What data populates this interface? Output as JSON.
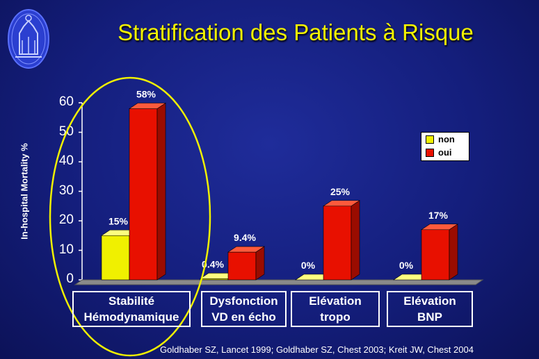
{
  "title": "Stratification des Patients à Risque",
  "citation": "Goldhaber SZ, Lancet 1999; Goldhaber SZ, Chest 2003;  Kreit JW, Chest 2004",
  "colors": {
    "non": "#f0f000",
    "oui": "#e81000",
    "highlight": "#f0f000",
    "title": "#f2f200"
  },
  "chart_data": {
    "type": "bar",
    "categories": [
      {
        "line1": "Stabilité",
        "line2": "Hémodynamique"
      },
      {
        "line1": "Dysfonction",
        "line2": "VD en écho"
      },
      {
        "line1": "Elévation",
        "line2": "tropo"
      },
      {
        "line1": "Elévation",
        "line2": "BNP"
      }
    ],
    "series": [
      {
        "name": "non",
        "values": [
          15,
          0.4,
          0,
          0
        ],
        "labels": [
          "15%",
          "0.4%",
          "0%",
          "0%"
        ]
      },
      {
        "name": "oui",
        "values": [
          58,
          9.4,
          25,
          17
        ],
        "labels": [
          "58%",
          "9.4%",
          "25%",
          "17%"
        ]
      }
    ],
    "ylabel": "In-hospital Mortality %",
    "ylim": [
      0,
      60
    ],
    "yticks": [
      "0",
      "10",
      "20",
      "30",
      "40",
      "50",
      "60"
    ],
    "legend_position": "right",
    "highlight": "first category circled"
  }
}
